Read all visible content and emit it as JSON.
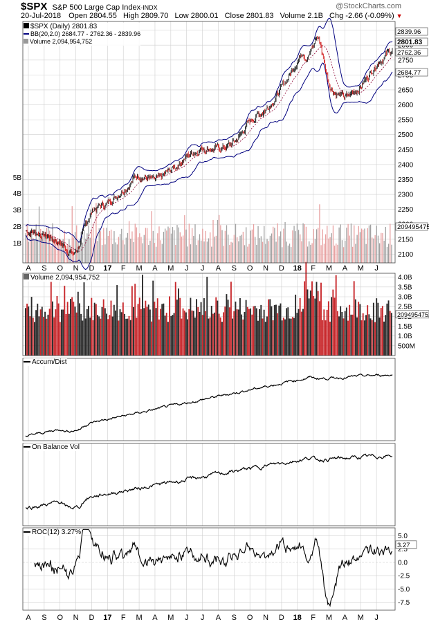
{
  "header": {
    "symbol": "$SPX",
    "name": "S&P 500 Large Cap Index",
    "exchange": "INDX",
    "watermark": "@StockCharts.com",
    "date": "20-Jul-2018",
    "open_label": "Open",
    "open": "2804.55",
    "high_label": "High",
    "high": "2809.70",
    "low_label": "Low",
    "low": "2800.01",
    "close_label": "Close",
    "close": "2801.83",
    "volume_label": "Volume",
    "volume": "2.1B",
    "chg_label": "Chg",
    "chg": "-2.66 (-0.09%)"
  },
  "colors": {
    "up_candle": "#000000",
    "down_candle": "#cc0000",
    "bollinger": "#00007f",
    "volume_up": "#a0a0a0",
    "volume_down": "#e8a0a0",
    "volume_dark": "#2a2a2a",
    "volume_red": "#c8282c",
    "grid": "#cfcfcf"
  },
  "panels": {
    "price_legend": {
      "line1": "$SPX (Daily) 2801.83",
      "line2": "BB(20,2.0) 2684.77 - 2762.36 - 2839.96",
      "line3": "Volume 2,094,954,752"
    },
    "volume_title": "Volume 2,094,954,752",
    "ad_title": "Accum/Dist",
    "obv_title": "On Balance Vol",
    "roc_title": "ROC(12) 3.27%"
  },
  "axes": {
    "months": [
      "A",
      "S",
      "O",
      "N",
      "D",
      "17",
      "F",
      "M",
      "A",
      "M",
      "J",
      "J",
      "A",
      "S",
      "O",
      "N",
      "D",
      "18",
      "F",
      "M",
      "A",
      "M",
      "J"
    ],
    "price_ticks": [
      "2850",
      "2800",
      "2750",
      "2700",
      "2650",
      "2600",
      "2550",
      "2500",
      "2450",
      "2400",
      "2350",
      "2300",
      "2250",
      "2200",
      "2150",
      "2100"
    ],
    "price_tick_values": [
      2850,
      2800,
      2750,
      2700,
      2650,
      2600,
      2550,
      2500,
      2450,
      2400,
      2350,
      2300,
      2250,
      2200,
      2150,
      2100
    ],
    "price_vol_ticks": [
      "5B",
      "4B",
      "3B",
      "2B",
      "1B"
    ],
    "price_marks": [
      "2839.96",
      "2801.83",
      "2762.36",
      "2684.77",
      "2094954752"
    ],
    "vol_ticks": [
      "4.0B",
      "3.5B",
      "3.0B",
      "2.5B",
      "2.0B",
      "1.5B",
      "1.0B",
      "500M"
    ],
    "vol_marker": "2094954752",
    "roc_ticks": [
      "5.0",
      "2.5",
      "0.0",
      "-2.5",
      "-5.0",
      "-7.5"
    ],
    "roc_marker": "3.27"
  },
  "chart_data": [
    {
      "type": "line",
      "title": "$SPX (Daily) 2801.83",
      "series": [
        {
          "name": "$SPX (Daily)",
          "x": [
            "Aug-16",
            "Sep-16",
            "Oct-16",
            "Nov-16",
            "Dec-16",
            "Jan-17",
            "Feb-17",
            "Mar-17",
            "Apr-17",
            "May-17",
            "Jun-17",
            "Jul-17",
            "Aug-17",
            "Sep-17",
            "Oct-17",
            "Nov-17",
            "Dec-17",
            "Jan-18",
            "Feb-18",
            "Mar-18",
            "Apr-18",
            "May-18",
            "Jun-18",
            "Jul-18"
          ],
          "values": [
            2178,
            2165,
            2140,
            2095,
            2250,
            2270,
            2320,
            2370,
            2340,
            2380,
            2430,
            2460,
            2450,
            2475,
            2550,
            2590,
            2660,
            2760,
            2860,
            2650,
            2620,
            2670,
            2750,
            2790
          ]
        },
        {
          "name": "BB(20,2.0)",
          "values": [
            2762.36,
            2684.77,
            2839.96
          ]
        }
      ],
      "ylim": [
        2080,
        2870
      ]
    },
    {
      "type": "bar",
      "title": "Volume 2,094,954,752",
      "ylim": [
        0,
        4.2
      ],
      "ylabel": "",
      "last_value": 2.09
    },
    {
      "type": "line",
      "title": "Accum/Dist"
    },
    {
      "type": "line",
      "title": "On Balance Vol"
    },
    {
      "type": "line",
      "title": "ROC(12) 3.27%",
      "ylim": [
        -9,
        6.5
      ],
      "last_value": 3.27
    }
  ]
}
